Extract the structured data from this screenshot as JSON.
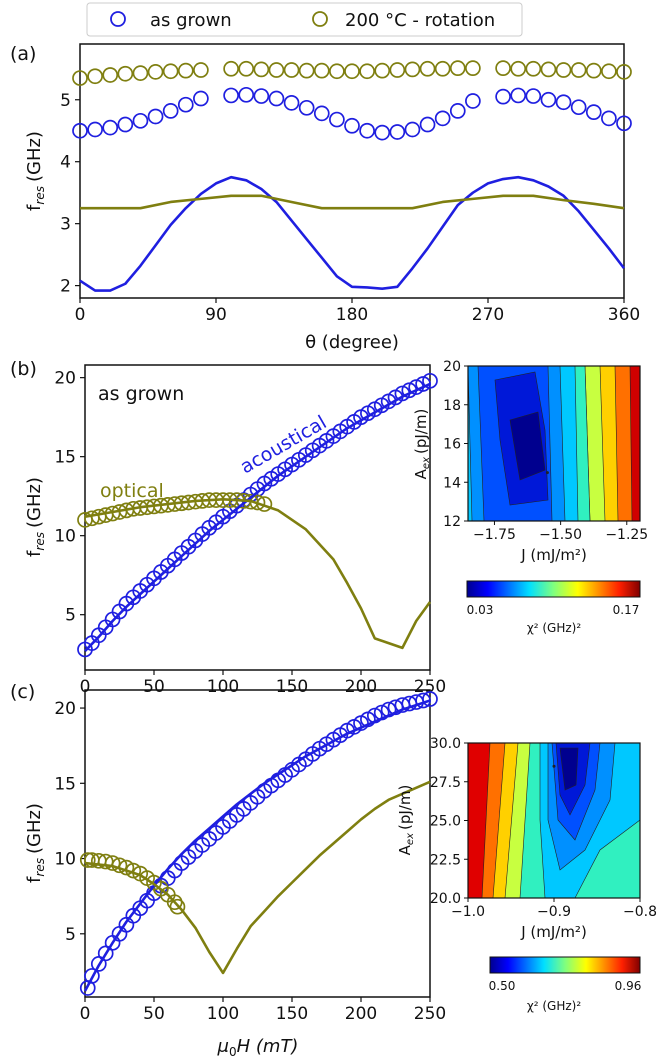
{
  "colors": {
    "blue": "#1f1fe0",
    "olive": "#7f7f10",
    "frame": "#111111"
  },
  "legend": {
    "as_grown": "as grown",
    "rotation": "200 °C - rotation"
  },
  "chart_data": [
    {
      "panel": "(a)",
      "type": "scatter+line",
      "xlabel": "θ (degree)",
      "ylabel_main": "f",
      "ylabel_sub": "res",
      "ylabel_unit": "(GHz)",
      "xlim": [
        0,
        360
      ],
      "ylim": [
        1.8,
        5.9
      ],
      "xticks": [
        0,
        90,
        180,
        270,
        360
      ],
      "yticks": [
        2,
        3,
        4,
        5
      ],
      "series": [
        {
          "name": "as grown",
          "kind": "markers",
          "color": "blue",
          "x": [
            0,
            10,
            20,
            30,
            40,
            50,
            60,
            70,
            80,
            100,
            110,
            120,
            130,
            140,
            150,
            160,
            170,
            180,
            190,
            200,
            210,
            220,
            230,
            240,
            250,
            260,
            280,
            290,
            300,
            310,
            320,
            330,
            340,
            350,
            360
          ],
          "y": [
            4.5,
            4.52,
            4.55,
            4.6,
            4.66,
            4.73,
            4.82,
            4.92,
            5.02,
            5.07,
            5.08,
            5.06,
            5.02,
            4.95,
            4.87,
            4.78,
            4.68,
            4.58,
            4.5,
            4.47,
            4.48,
            4.52,
            4.6,
            4.7,
            4.82,
            4.98,
            5.05,
            5.07,
            5.06,
            5.0,
            4.96,
            4.88,
            4.8,
            4.7,
            4.62
          ]
        },
        {
          "name": "200 °C - rotation",
          "kind": "markers",
          "color": "olive",
          "x": [
            0,
            10,
            20,
            30,
            40,
            50,
            60,
            70,
            80,
            100,
            110,
            120,
            130,
            140,
            150,
            160,
            170,
            180,
            190,
            200,
            210,
            220,
            230,
            240,
            250,
            260,
            280,
            290,
            300,
            310,
            320,
            330,
            340,
            350,
            360
          ],
          "y": [
            5.35,
            5.38,
            5.4,
            5.42,
            5.43,
            5.45,
            5.46,
            5.47,
            5.48,
            5.5,
            5.5,
            5.49,
            5.48,
            5.48,
            5.47,
            5.47,
            5.46,
            5.46,
            5.46,
            5.47,
            5.48,
            5.49,
            5.5,
            5.5,
            5.51,
            5.51,
            5.51,
            5.5,
            5.5,
            5.49,
            5.48,
            5.48,
            5.47,
            5.46,
            5.45
          ]
        },
        {
          "kind": "line",
          "color": "blue",
          "x": [
            0,
            10,
            20,
            30,
            40,
            50,
            60,
            70,
            80,
            90,
            100,
            110,
            120,
            130,
            140,
            150,
            160,
            170,
            180,
            190,
            200,
            210,
            220,
            230,
            240,
            250,
            260,
            270,
            280,
            290,
            300,
            310,
            320,
            330,
            340,
            350,
            360
          ],
          "y": [
            2.08,
            1.92,
            1.92,
            2.03,
            2.32,
            2.65,
            2.98,
            3.25,
            3.48,
            3.65,
            3.75,
            3.7,
            3.56,
            3.35,
            3.05,
            2.75,
            2.45,
            2.15,
            1.98,
            1.97,
            1.95,
            1.98,
            2.28,
            2.6,
            2.95,
            3.3,
            3.5,
            3.65,
            3.72,
            3.75,
            3.7,
            3.6,
            3.45,
            3.2,
            2.9,
            2.6,
            2.28
          ]
        },
        {
          "kind": "line",
          "color": "olive",
          "x": [
            0,
            20,
            40,
            60,
            80,
            100,
            120,
            140,
            160,
            180,
            200,
            220,
            240,
            260,
            280,
            300,
            320,
            340,
            360
          ],
          "y": [
            3.25,
            3.25,
            3.25,
            3.35,
            3.4,
            3.45,
            3.45,
            3.35,
            3.25,
            3.25,
            3.25,
            3.25,
            3.35,
            3.4,
            3.45,
            3.45,
            3.38,
            3.32,
            3.25
          ]
        }
      ]
    },
    {
      "panel": "(b)",
      "type": "scatter+line",
      "xlabel": "",
      "ylabel_main": "f",
      "ylabel_sub": "res",
      "ylabel_unit": "(GHz)",
      "xlim": [
        0,
        250
      ],
      "ylim": [
        1.5,
        20.8
      ],
      "xticks": [
        0,
        50,
        100,
        150,
        200,
        250
      ],
      "yticks": [
        5,
        10,
        15,
        20
      ],
      "annotations": {
        "title": "as grown",
        "acoustical": "acoustical",
        "optical": "optical"
      },
      "series": [
        {
          "name": "acoustical",
          "kind": "markers",
          "color": "blue",
          "x": [
            0,
            5,
            10,
            15,
            20,
            25,
            30,
            35,
            40,
            45,
            50,
            55,
            60,
            65,
            70,
            75,
            80,
            85,
            90,
            95,
            100,
            105,
            110,
            115,
            120,
            125,
            130,
            135,
            140,
            145,
            150,
            155,
            160,
            165,
            170,
            175,
            180,
            185,
            190,
            195,
            200,
            205,
            210,
            215,
            220,
            225,
            230,
            235,
            240,
            245,
            250
          ],
          "y": [
            2.8,
            3.2,
            3.7,
            4.2,
            4.7,
            5.2,
            5.7,
            6.1,
            6.5,
            6.9,
            7.3,
            7.7,
            8.1,
            8.5,
            8.9,
            9.3,
            9.7,
            10.1,
            10.5,
            10.85,
            11.2,
            11.55,
            11.9,
            12.25,
            12.6,
            12.95,
            13.3,
            13.6,
            13.9,
            14.2,
            14.5,
            14.8,
            15.1,
            15.4,
            15.7,
            16.0,
            16.3,
            16.6,
            16.9,
            17.2,
            17.5,
            17.75,
            18.0,
            18.25,
            18.5,
            18.75,
            19.0,
            19.2,
            19.4,
            19.6,
            19.8
          ]
        },
        {
          "name": "optical",
          "kind": "markers",
          "color": "olive",
          "x": [
            0,
            5,
            10,
            15,
            20,
            25,
            30,
            35,
            40,
            45,
            50,
            55,
            60,
            65,
            70,
            75,
            80,
            85,
            90,
            95,
            100,
            105,
            110,
            115,
            120,
            125,
            130
          ],
          "y": [
            11.0,
            11.1,
            11.2,
            11.3,
            11.4,
            11.5,
            11.6,
            11.7,
            11.75,
            11.8,
            11.85,
            11.9,
            11.95,
            12.0,
            12.05,
            12.1,
            12.15,
            12.2,
            12.25,
            12.25,
            12.25,
            12.25,
            12.25,
            12.2,
            12.15,
            12.1,
            12.0
          ]
        },
        {
          "kind": "line",
          "color": "blue",
          "x": [
            0,
            10,
            20,
            30,
            40,
            50,
            60,
            70,
            80,
            90,
            100,
            110,
            120,
            130,
            140,
            150,
            160,
            170,
            180,
            190,
            200,
            210,
            220,
            230,
            240,
            250
          ],
          "y": [
            2.7,
            3.6,
            4.6,
            5.5,
            6.3,
            7.1,
            7.9,
            8.7,
            9.5,
            10.3,
            11.0,
            11.7,
            12.4,
            13.1,
            13.8,
            14.4,
            15.0,
            15.6,
            16.2,
            16.8,
            17.3,
            17.8,
            18.3,
            18.8,
            19.2,
            19.6
          ]
        },
        {
          "kind": "line",
          "color": "olive",
          "x": [
            0,
            20,
            40,
            60,
            80,
            100,
            120,
            140,
            160,
            180,
            190,
            200,
            210,
            220,
            230,
            240,
            250
          ],
          "y": [
            11.2,
            11.5,
            11.8,
            12.0,
            12.2,
            12.3,
            12.2,
            11.6,
            10.4,
            8.5,
            7.0,
            5.4,
            3.5,
            3.2,
            2.9,
            4.6,
            5.8
          ]
        }
      ]
    },
    {
      "panel": "(c)",
      "type": "scatter+line",
      "xlabel_main": "μ",
      "xlabel_sub": "0",
      "xlabel_rest": "H (mT)",
      "ylabel_main": "f",
      "ylabel_sub": "res",
      "ylabel_unit": "(GHz)",
      "xlim": [
        0,
        250
      ],
      "ylim": [
        0.8,
        21.2
      ],
      "xticks": [
        0,
        50,
        100,
        150,
        200,
        250
      ],
      "yticks": [
        5,
        10,
        15,
        20
      ],
      "series": [
        {
          "name": "acoustical",
          "kind": "markers",
          "color": "blue",
          "x": [
            2,
            5,
            10,
            15,
            20,
            25,
            30,
            35,
            40,
            45,
            50,
            55,
            60,
            65,
            70,
            75,
            80,
            85,
            90,
            95,
            100,
            105,
            110,
            115,
            120,
            125,
            130,
            135,
            140,
            145,
            150,
            155,
            160,
            165,
            170,
            175,
            180,
            185,
            190,
            195,
            200,
            205,
            210,
            215,
            220,
            225,
            230,
            235,
            240,
            245,
            250
          ],
          "y": [
            1.4,
            2.2,
            3.0,
            3.7,
            4.4,
            5.0,
            5.6,
            6.2,
            6.7,
            7.2,
            7.7,
            8.2,
            8.7,
            9.2,
            9.7,
            10.1,
            10.5,
            10.9,
            11.3,
            11.7,
            12.1,
            12.5,
            12.9,
            13.3,
            13.7,
            14.1,
            14.5,
            14.85,
            15.2,
            15.55,
            15.9,
            16.25,
            16.6,
            16.95,
            17.3,
            17.6,
            17.9,
            18.2,
            18.5,
            18.75,
            19.0,
            19.25,
            19.5,
            19.7,
            19.9,
            20.05,
            20.2,
            20.3,
            20.4,
            20.5,
            20.6
          ]
        },
        {
          "name": "optical",
          "kind": "markers",
          "color": "olive",
          "x": [
            2,
            5,
            10,
            15,
            20,
            25,
            30,
            35,
            40,
            45,
            50,
            55,
            60,
            65,
            67
          ],
          "y": [
            9.9,
            9.9,
            9.85,
            9.8,
            9.7,
            9.55,
            9.4,
            9.2,
            9.0,
            8.7,
            8.4,
            8.0,
            7.6,
            7.1,
            6.8
          ]
        },
        {
          "kind": "line",
          "color": "blue",
          "x": [
            0,
            10,
            20,
            30,
            40,
            50,
            60,
            70,
            80,
            90,
            100,
            110,
            120,
            130,
            140,
            150,
            160,
            170,
            180,
            190,
            200,
            210,
            220,
            230,
            240,
            250
          ],
          "y": [
            1.2,
            2.9,
            4.4,
            5.8,
            7.0,
            8.2,
            9.3,
            10.3,
            11.2,
            12.0,
            12.8,
            13.6,
            14.3,
            15.0,
            15.6,
            16.2,
            16.8,
            17.3,
            17.8,
            18.3,
            18.7,
            19.1,
            19.5,
            19.9,
            20.2,
            20.5
          ]
        },
        {
          "kind": "line",
          "color": "olive",
          "x": [
            0,
            20,
            40,
            50,
            60,
            70,
            80,
            90,
            100,
            110,
            120,
            130,
            140,
            150,
            160,
            170,
            180,
            190,
            200,
            210,
            220,
            230,
            240,
            250
          ],
          "y": [
            9.7,
            9.5,
            8.9,
            8.3,
            7.6,
            6.6,
            5.4,
            3.8,
            2.4,
            4.0,
            5.5,
            6.5,
            7.5,
            8.4,
            9.3,
            10.2,
            11.0,
            11.8,
            12.6,
            13.3,
            13.9,
            14.3,
            14.7,
            15.1
          ]
        }
      ]
    },
    {
      "panel": "(b) inset",
      "type": "heatmap",
      "xlabel": "J (mJ/m²)",
      "ylabel_main": "A",
      "ylabel_sub": "ex",
      "ylabel_unit": "(pJ/m)",
      "xlim": [
        -1.85,
        -1.2
      ],
      "ylim": [
        12,
        20
      ],
      "xticks": [
        -1.75,
        -1.5,
        -1.25
      ],
      "xtick_labels": [
        "−1.75",
        "−1.50",
        "−1.25"
      ],
      "yticks": [
        12,
        14,
        16,
        18,
        20
      ],
      "minimum": {
        "x": -1.55,
        "y": 14.5
      },
      "colorbar": {
        "label": "χ² (GHz)²",
        "min": "0.03",
        "max": "0.17"
      }
    },
    {
      "panel": "(c) inset",
      "type": "heatmap",
      "xlabel": "J (mJ/m²)",
      "ylabel_main": "A",
      "ylabel_sub": "ex",
      "ylabel_unit": "(pJ/m)",
      "xlim": [
        -1.0,
        -0.8
      ],
      "ylim": [
        20,
        30
      ],
      "xticks": [
        -1.0,
        -0.9,
        -0.8
      ],
      "xtick_labels": [
        "−1.0",
        "−0.9",
        "−0.8"
      ],
      "yticks": [
        20,
        22.5,
        25,
        27.5,
        30
      ],
      "ytick_labels": [
        "20.0",
        "22.5",
        "25.0",
        "27.5",
        "30.0"
      ],
      "minimum": {
        "x": -0.9,
        "y": 28.5
      },
      "colorbar": {
        "label": "χ² (GHz)²",
        "min": "0.50",
        "max": "0.96"
      }
    }
  ]
}
